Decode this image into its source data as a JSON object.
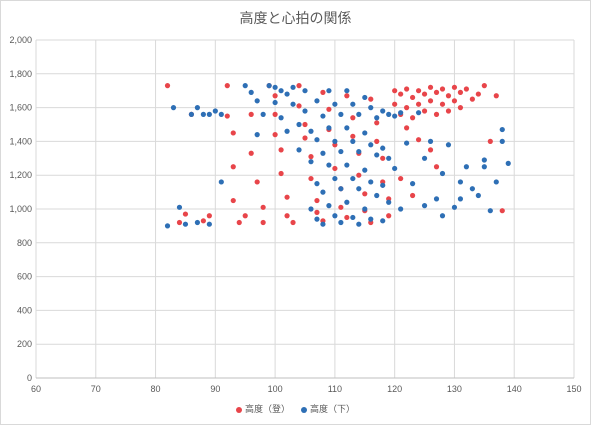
{
  "chart_data": {
    "type": "scatter",
    "title": "高度と心拍の関係",
    "xlabel": "",
    "ylabel": "",
    "xlim": [
      60,
      150
    ],
    "ylim": [
      0,
      2000
    ],
    "x_ticks": [
      60,
      70,
      80,
      90,
      100,
      110,
      120,
      130,
      140,
      150
    ],
    "x_tick_labels": [
      "60",
      "70",
      "80",
      "90",
      "100",
      "110",
      "120",
      "130",
      "140",
      "150"
    ],
    "y_ticks": [
      0,
      200,
      400,
      600,
      800,
      1000,
      1200,
      1400,
      1600,
      1800,
      2000
    ],
    "y_tick_labels": [
      "0",
      "200",
      "400",
      "600",
      "800",
      "1,000",
      "1,200",
      "1,400",
      "1,600",
      "1,800",
      "2,000"
    ],
    "grid": true,
    "legend_position": "bottom",
    "series": [
      {
        "name": "高度（登）",
        "color": "#e8454a",
        "points": [
          [
            82,
            1730
          ],
          [
            84,
            920
          ],
          [
            85,
            970
          ],
          [
            86,
            1560
          ],
          [
            88,
            930
          ],
          [
            89,
            960
          ],
          [
            92,
            1730
          ],
          [
            92,
            1550
          ],
          [
            93,
            1450
          ],
          [
            93,
            1250
          ],
          [
            93,
            1050
          ],
          [
            94,
            920
          ],
          [
            95,
            960
          ],
          [
            96,
            1560
          ],
          [
            96,
            1330
          ],
          [
            97,
            1160
          ],
          [
            98,
            1010
          ],
          [
            98,
            920
          ],
          [
            99,
            1730
          ],
          [
            100,
            1670
          ],
          [
            100,
            1560
          ],
          [
            100,
            1440
          ],
          [
            101,
            1350
          ],
          [
            101,
            1210
          ],
          [
            102,
            1070
          ],
          [
            102,
            960
          ],
          [
            103,
            920
          ],
          [
            104,
            1730
          ],
          [
            104,
            1610
          ],
          [
            105,
            1500
          ],
          [
            105,
            1420
          ],
          [
            106,
            1310
          ],
          [
            106,
            1180
          ],
          [
            107,
            1050
          ],
          [
            107,
            980
          ],
          [
            108,
            930
          ],
          [
            108,
            1690
          ],
          [
            109,
            1590
          ],
          [
            109,
            1470
          ],
          [
            110,
            1380
          ],
          [
            110,
            1240
          ],
          [
            111,
            1120
          ],
          [
            111,
            1010
          ],
          [
            112,
            950
          ],
          [
            112,
            1670
          ],
          [
            113,
            1540
          ],
          [
            113,
            1430
          ],
          [
            114,
            1330
          ],
          [
            114,
            1200
          ],
          [
            115,
            1090
          ],
          [
            115,
            990
          ],
          [
            116,
            920
          ],
          [
            116,
            1650
          ],
          [
            117,
            1510
          ],
          [
            117,
            1400
          ],
          [
            118,
            1300
          ],
          [
            118,
            1160
          ],
          [
            119,
            1060
          ],
          [
            119,
            960
          ],
          [
            120,
            1700
          ],
          [
            120,
            1620
          ],
          [
            121,
            1680
          ],
          [
            121,
            1560
          ],
          [
            122,
            1710
          ],
          [
            122,
            1600
          ],
          [
            123,
            1660
          ],
          [
            123,
            1540
          ],
          [
            124,
            1700
          ],
          [
            124,
            1620
          ],
          [
            125,
            1680
          ],
          [
            125,
            1580
          ],
          [
            126,
            1720
          ],
          [
            126,
            1640
          ],
          [
            127,
            1690
          ],
          [
            127,
            1560
          ],
          [
            128,
            1710
          ],
          [
            128,
            1620
          ],
          [
            129,
            1670
          ],
          [
            129,
            1580
          ],
          [
            130,
            1720
          ],
          [
            130,
            1640
          ],
          [
            131,
            1690
          ],
          [
            131,
            1600
          ],
          [
            132,
            1710
          ],
          [
            133,
            1650
          ],
          [
            134,
            1680
          ],
          [
            135,
            1730
          ],
          [
            136,
            1400
          ],
          [
            137,
            1670
          ],
          [
            138,
            990
          ],
          [
            122,
            1480
          ],
          [
            124,
            1410
          ],
          [
            126,
            1350
          ],
          [
            127,
            1250
          ],
          [
            121,
            1180
          ],
          [
            123,
            1080
          ]
        ]
      },
      {
        "name": "高度（下）",
        "color": "#2e6fb5",
        "points": [
          [
            82,
            900
          ],
          [
            83,
            1600
          ],
          [
            84,
            1010
          ],
          [
            85,
            910
          ],
          [
            86,
            1560
          ],
          [
            87,
            1600
          ],
          [
            88,
            1560
          ],
          [
            89,
            1560
          ],
          [
            90,
            1580
          ],
          [
            91,
            1560
          ],
          [
            91,
            1160
          ],
          [
            89,
            910
          ],
          [
            87,
            920
          ],
          [
            95,
            1730
          ],
          [
            96,
            1690
          ],
          [
            97,
            1640
          ],
          [
            97,
            1440
          ],
          [
            98,
            1560
          ],
          [
            99,
            1730
          ],
          [
            100,
            1720
          ],
          [
            100,
            1630
          ],
          [
            101,
            1700
          ],
          [
            101,
            1540
          ],
          [
            102,
            1680
          ],
          [
            102,
            1460
          ],
          [
            103,
            1720
          ],
          [
            103,
            1620
          ],
          [
            104,
            1500
          ],
          [
            104,
            1350
          ],
          [
            105,
            1700
          ],
          [
            105,
            1580
          ],
          [
            106,
            1460
          ],
          [
            106,
            1280
          ],
          [
            106,
            1000
          ],
          [
            107,
            1640
          ],
          [
            107,
            1410
          ],
          [
            107,
            1150
          ],
          [
            107,
            940
          ],
          [
            108,
            1550
          ],
          [
            108,
            1330
          ],
          [
            108,
            1100
          ],
          [
            108,
            910
          ],
          [
            109,
            1700
          ],
          [
            109,
            1480
          ],
          [
            109,
            1260
          ],
          [
            109,
            1020
          ],
          [
            110,
            1620
          ],
          [
            110,
            1400
          ],
          [
            110,
            1180
          ],
          [
            110,
            960
          ],
          [
            111,
            1560
          ],
          [
            111,
            1340
          ],
          [
            111,
            1120
          ],
          [
            111,
            920
          ],
          [
            112,
            1700
          ],
          [
            112,
            1480
          ],
          [
            112,
            1260
          ],
          [
            112,
            1040
          ],
          [
            113,
            1620
          ],
          [
            113,
            1400
          ],
          [
            113,
            1180
          ],
          [
            113,
            950
          ],
          [
            114,
            1560
          ],
          [
            114,
            1340
          ],
          [
            114,
            1120
          ],
          [
            114,
            910
          ],
          [
            115,
            1660
          ],
          [
            115,
            1450
          ],
          [
            115,
            1230
          ],
          [
            115,
            1000
          ],
          [
            116,
            1600
          ],
          [
            116,
            1380
          ],
          [
            116,
            1160
          ],
          [
            116,
            940
          ],
          [
            117,
            1540
          ],
          [
            117,
            1320
          ],
          [
            117,
            1080
          ],
          [
            118,
            1580
          ],
          [
            118,
            1360
          ],
          [
            118,
            1140
          ],
          [
            118,
            930
          ],
          [
            119,
            1560
          ],
          [
            119,
            1300
          ],
          [
            119,
            1040
          ],
          [
            120,
            1550
          ],
          [
            120,
            1240
          ],
          [
            121,
            1570
          ],
          [
            121,
            1000
          ],
          [
            122,
            1390
          ],
          [
            123,
            1150
          ],
          [
            124,
            1570
          ],
          [
            125,
            1300
          ],
          [
            125,
            1020
          ],
          [
            126,
            1400
          ],
          [
            127,
            1060
          ],
          [
            128,
            1210
          ],
          [
            128,
            960
          ],
          [
            129,
            1380
          ],
          [
            130,
            1010
          ],
          [
            131,
            1160
          ],
          [
            131,
            1060
          ],
          [
            132,
            1250
          ],
          [
            133,
            1120
          ],
          [
            134,
            1080
          ],
          [
            135,
            1290
          ],
          [
            135,
            1250
          ],
          [
            136,
            990
          ],
          [
            137,
            1160
          ],
          [
            138,
            1470
          ],
          [
            138,
            1400
          ],
          [
            139,
            1270
          ]
        ]
      }
    ]
  }
}
